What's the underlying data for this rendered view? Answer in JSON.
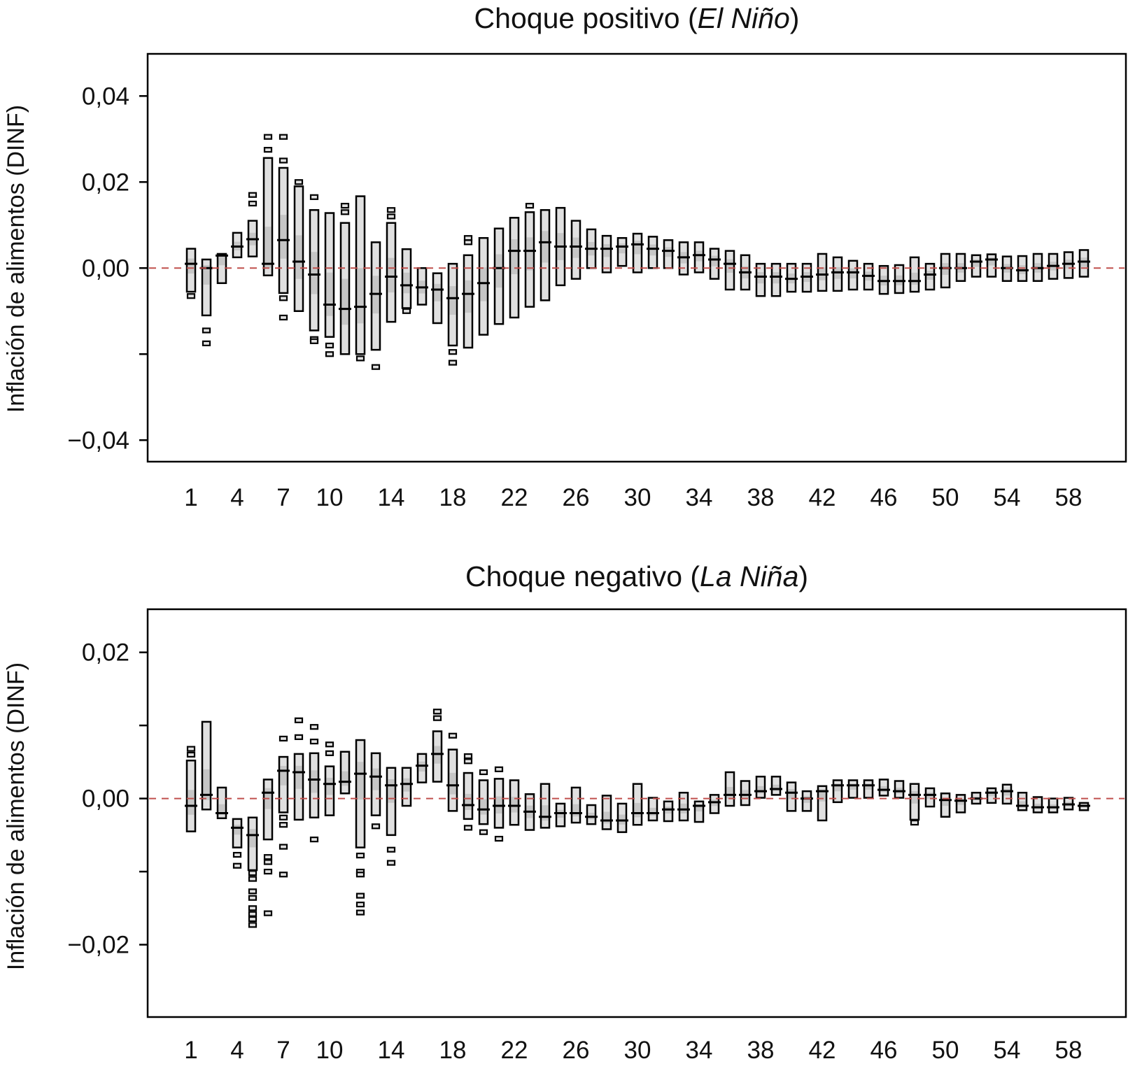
{
  "chart_data": [
    {
      "type": "boxplot",
      "title": {
        "prefix": "Choque positivo (",
        "italic": "El Niño",
        "suffix": ")"
      },
      "ylabel": "Inflación de alimentos (DINF)",
      "xlabel": "",
      "ylim": [
        -0.045,
        0.0498
      ],
      "yticks": [
        {
          "value": 0.04,
          "label": "0,04"
        },
        {
          "value": 0.02,
          "label": "0,02"
        },
        {
          "value": 0,
          "label": "0,00"
        },
        {
          "value": -0.02,
          "label": ""
        },
        {
          "value": -0.04,
          "label": "−0,04"
        }
      ],
      "xticks": [
        "1",
        "4",
        "7",
        "10",
        "14",
        "18",
        "22",
        "26",
        "30",
        "34",
        "38",
        "42",
        "46",
        "50",
        "54",
        "58"
      ],
      "reference_line": {
        "value": 0,
        "color": "#c0504d",
        "style": "dashed"
      },
      "box_fields": [
        "low",
        "high",
        "median",
        "outliers"
      ],
      "box_fill": "#e0e0e0",
      "periods": [
        [
          -0.0055,
          0.0045,
          0.001,
          [
            -0.0065
          ]
        ],
        [
          -0.011,
          0.002,
          0,
          [
            -0.0145,
            -0.0175
          ]
        ],
        [
          -0.0035,
          0.0033,
          0.0029,
          []
        ],
        [
          0.0025,
          0.0082,
          0.005,
          []
        ],
        [
          0.0027,
          0.011,
          0.0067,
          [
            0.015,
            0.017
          ]
        ],
        [
          -0.0017,
          0.0256,
          0.001,
          [
            0.0275,
            0.0305
          ]
        ],
        [
          -0.0058,
          0.0233,
          0.0065,
          [
            0.0305,
            0.025,
            -0.007,
            -0.0115
          ]
        ],
        [
          -0.01,
          0.019,
          0.0015,
          [
            0.02
          ]
        ],
        [
          -0.0145,
          0.0135,
          -0.0015,
          [
            0.0165,
            -0.0165,
            -0.017
          ]
        ],
        [
          -0.016,
          0.0128,
          -0.0085,
          [
            -0.018,
            -0.02
          ]
        ],
        [
          -0.02,
          0.0105,
          -0.0095,
          [
            0.0145,
            0.013
          ]
        ],
        [
          -0.02,
          0.0167,
          -0.009,
          [
            -0.021
          ]
        ],
        [
          -0.019,
          0.006,
          -0.006,
          [
            -0.023
          ]
        ],
        [
          -0.0125,
          0.0105,
          -0.002,
          [
            0.0135,
            0.012
          ]
        ],
        [
          -0.0093,
          0.0044,
          -0.004,
          [
            -0.01
          ]
        ],
        [
          -0.0085,
          0,
          -0.0045,
          []
        ],
        [
          -0.0128,
          -0.0012,
          -0.005,
          []
        ],
        [
          -0.018,
          0.001,
          -0.007,
          [
            -0.0195,
            -0.022
          ]
        ],
        [
          -0.0185,
          0.003,
          -0.006,
          [
            0.007,
            0.006
          ]
        ],
        [
          -0.0155,
          0.007,
          -0.0035,
          []
        ],
        [
          -0.013,
          0.0092,
          0,
          []
        ],
        [
          -0.0115,
          0.0117,
          0.004,
          []
        ],
        [
          -0.009,
          0.013,
          0.004,
          [
            0.0145
          ]
        ],
        [
          -0.0075,
          0.0135,
          0.006,
          []
        ],
        [
          -0.004,
          0.014,
          0.005,
          []
        ],
        [
          -0.0025,
          0.011,
          0.005,
          []
        ],
        [
          0,
          0.009,
          0.0045,
          []
        ],
        [
          -0.001,
          0.0075,
          0.0045,
          []
        ],
        [
          0.0005,
          0.007,
          0.005,
          []
        ],
        [
          -0.001,
          0.008,
          0.0055,
          []
        ],
        [
          0,
          0.0073,
          0.0045,
          []
        ],
        [
          0,
          0.0065,
          0.004,
          []
        ],
        [
          -0.0015,
          0.006,
          0.0025,
          []
        ],
        [
          -0.001,
          0.006,
          0.003,
          []
        ],
        [
          -0.0025,
          0.0045,
          0.002,
          []
        ],
        [
          -0.005,
          0.004,
          0.001,
          []
        ],
        [
          -0.005,
          0.003,
          -0.001,
          []
        ],
        [
          -0.0065,
          0.001,
          -0.002,
          []
        ],
        [
          -0.0065,
          0.001,
          -0.002,
          []
        ],
        [
          -0.0055,
          0.001,
          -0.0025,
          []
        ],
        [
          -0.0055,
          0.001,
          -0.002,
          []
        ],
        [
          -0.0053,
          0.0033,
          -0.0015,
          []
        ],
        [
          -0.0053,
          0.0025,
          -0.001,
          []
        ],
        [
          -0.005,
          0.0017,
          -0.001,
          []
        ],
        [
          -0.005,
          0.001,
          -0.0018,
          []
        ],
        [
          -0.006,
          0.0005,
          -0.003,
          []
        ],
        [
          -0.0058,
          0.0007,
          -0.003,
          []
        ],
        [
          -0.0055,
          0.0025,
          -0.003,
          []
        ],
        [
          -0.005,
          0.001,
          -0.0015,
          []
        ],
        [
          -0.0045,
          0.0033,
          0,
          []
        ],
        [
          -0.003,
          0.0033,
          0,
          []
        ],
        [
          -0.002,
          0.003,
          0.0015,
          []
        ],
        [
          -0.002,
          0.0032,
          0.002,
          []
        ],
        [
          -0.003,
          0.0027,
          0,
          []
        ],
        [
          -0.003,
          0.0028,
          -0.0005,
          []
        ],
        [
          -0.003,
          0.0033,
          0,
          []
        ],
        [
          -0.0025,
          0.0033,
          0.0005,
          []
        ],
        [
          -0.0023,
          0.0037,
          0.001,
          []
        ],
        [
          -0.002,
          0.0042,
          0.0015,
          []
        ]
      ]
    },
    {
      "type": "boxplot",
      "title": {
        "prefix": "Choque negativo (",
        "italic": "La Niña",
        "suffix": ")"
      },
      "ylabel": "Inflación de alimentos (DINF)",
      "xlabel": "",
      "ylim": [
        -0.0299,
        0.0259
      ],
      "yticks": [
        {
          "value": 0.02,
          "label": "0,02"
        },
        {
          "value": 0.01,
          "label": ""
        },
        {
          "value": 0,
          "label": "0,00"
        },
        {
          "value": -0.01,
          "label": ""
        },
        {
          "value": -0.02,
          "label": "−0,02"
        }
      ],
      "xticks": [
        "1",
        "4",
        "7",
        "10",
        "14",
        "18",
        "22",
        "26",
        "30",
        "34",
        "38",
        "42",
        "46",
        "50",
        "54",
        "58"
      ],
      "reference_line": {
        "value": 0,
        "color": "#c0504d",
        "style": "dashed"
      },
      "box_fields": [
        "low",
        "high",
        "median",
        "outliers"
      ],
      "box_fill": "#e0e0e0",
      "periods": [
        [
          -0.0045,
          0.0052,
          -0.001,
          [
            0.0068,
            0.006
          ]
        ],
        [
          -0.0015,
          0.0105,
          0.0005,
          []
        ],
        [
          -0.0027,
          0.0015,
          -0.002,
          []
        ],
        [
          -0.0067,
          -0.0028,
          -0.004,
          [
            -0.0077,
            -0.0092
          ]
        ],
        [
          -0.0098,
          -0.0026,
          -0.005,
          [
            -0.0102,
            -0.011,
            -0.0127,
            -0.0136,
            -0.015,
            -0.0158,
            -0.0165,
            -0.0173
          ]
        ],
        [
          -0.0056,
          0.0026,
          0.0008,
          [
            -0.008,
            -0.0087,
            -0.01,
            -0.0157
          ]
        ],
        [
          -0.0019,
          0.0057,
          0.0038,
          [
            0.0082,
            -0.0026,
            -0.0036,
            -0.0066,
            -0.0104
          ]
        ],
        [
          -0.0029,
          0.0061,
          0.0036,
          [
            0.0107,
            0.0084
          ]
        ],
        [
          -0.0026,
          0.0062,
          0.0026,
          [
            0.0098,
            0.0078,
            -0.0056
          ]
        ],
        [
          -0.0023,
          0.0044,
          0.002,
          [
            0.0074,
            0.0062
          ]
        ],
        [
          0.0007,
          0.0064,
          0.0023,
          []
        ],
        [
          -0.0067,
          0.008,
          0.0034,
          [
            -0.0078,
            -0.01,
            -0.0104,
            -0.0133,
            -0.0145,
            -0.0156
          ]
        ],
        [
          -0.0023,
          0.0062,
          0.003,
          [
            -0.0038
          ]
        ],
        [
          -0.005,
          0.0042,
          0.0018,
          [
            -0.007,
            -0.0088
          ]
        ],
        [
          -0.001,
          0.0042,
          0.002,
          []
        ],
        [
          0.0022,
          0.0061,
          0.0045,
          []
        ],
        [
          0.0023,
          0.0092,
          0.0061,
          [
            0.0119,
            0.011
          ]
        ],
        [
          -0.0017,
          0.0067,
          0.0018,
          [
            0.0086
          ]
        ],
        [
          -0.0028,
          0.0035,
          -0.0009,
          [
            0.0058,
            0.0051,
            -0.004
          ]
        ],
        [
          -0.0035,
          0.0025,
          -0.0015,
          [
            0.0036,
            -0.0046
          ]
        ],
        [
          -0.004,
          0.0027,
          -0.001,
          [
            0.004,
            -0.0055
          ]
        ],
        [
          -0.0036,
          0.0025,
          -0.001,
          []
        ],
        [
          -0.0043,
          0.0006,
          -0.0018,
          []
        ],
        [
          -0.004,
          0.002,
          -0.0025,
          []
        ],
        [
          -0.0038,
          -0.0007,
          -0.002,
          []
        ],
        [
          -0.0033,
          0.0015,
          -0.002,
          []
        ],
        [
          -0.0035,
          -0.0009,
          -0.0025,
          []
        ],
        [
          -0.0042,
          0.0004,
          -0.003,
          []
        ],
        [
          -0.0046,
          -0.0007,
          -0.003,
          []
        ],
        [
          -0.0036,
          0.002,
          -0.002,
          []
        ],
        [
          -0.003,
          0.0001,
          -0.002,
          []
        ],
        [
          -0.0031,
          -0.0004,
          -0.0015,
          []
        ],
        [
          -0.003,
          0.0008,
          -0.0015,
          []
        ],
        [
          -0.0032,
          -0.0004,
          -0.001,
          []
        ],
        [
          -0.002,
          0.0005,
          -0.0005,
          []
        ],
        [
          -0.001,
          0.0036,
          0.0005,
          []
        ],
        [
          -0.0009,
          0.0024,
          0.0005,
          []
        ],
        [
          0.0001,
          0.003,
          0.001,
          []
        ],
        [
          0.0005,
          0.003,
          0.0013,
          []
        ],
        [
          -0.0017,
          0.0022,
          0.0008,
          []
        ],
        [
          -0.0017,
          0.001,
          0,
          []
        ],
        [
          -0.003,
          0.0017,
          0.001,
          []
        ],
        [
          -0.0005,
          0.0025,
          0.0018,
          []
        ],
        [
          0.0001,
          0.0025,
          0.0018,
          []
        ],
        [
          0.0001,
          0.0025,
          0.0018,
          []
        ],
        [
          0.0004,
          0.0026,
          0.0012,
          []
        ],
        [
          0.0001,
          0.0024,
          0.001,
          []
        ],
        [
          -0.0029,
          0.002,
          0.0005,
          [
            -0.0033
          ]
        ],
        [
          -0.0011,
          0.0014,
          0.0005,
          []
        ],
        [
          -0.0025,
          0.0007,
          -0.0002,
          []
        ],
        [
          -0.0019,
          0.0005,
          -0.0003,
          []
        ],
        [
          -0.0007,
          0.0008,
          0,
          []
        ],
        [
          -0.0006,
          0.0014,
          0.0008,
          []
        ],
        [
          -0.0007,
          0.0019,
          0.001,
          []
        ],
        [
          -0.0016,
          0.0008,
          -0.001,
          []
        ],
        [
          -0.0019,
          0.0002,
          -0.0012,
          []
        ],
        [
          -0.0019,
          0,
          -0.0012,
          []
        ],
        [
          -0.0015,
          0.0001,
          -0.0008,
          []
        ],
        [
          -0.0016,
          -0.0006,
          -0.001,
          []
        ]
      ]
    }
  ]
}
